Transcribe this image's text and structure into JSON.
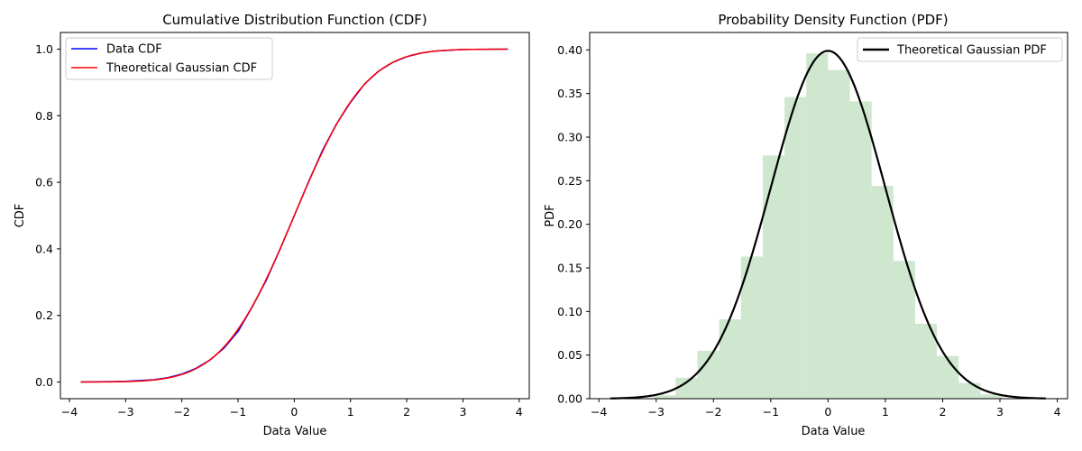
{
  "colors": {
    "data_cdf": "#0000ff",
    "theoretical_cdf": "#ff0000",
    "theoretical_pdf": "#000000",
    "histogram": "#cfe6cf"
  },
  "chart_data": [
    {
      "type": "line",
      "title": "Cumulative Distribution Function (CDF)",
      "xlabel": "Data Value",
      "ylabel": "CDF",
      "xlim": [
        -4.16,
        4.18
      ],
      "ylim": [
        -0.05,
        1.05
      ],
      "xticks": [
        -4,
        -3,
        -2,
        -1,
        0,
        1,
        2,
        3,
        4
      ],
      "yticks": [
        0.0,
        0.2,
        0.4,
        0.6,
        0.8,
        1.0
      ],
      "legend": "top-left",
      "grid": false,
      "series": [
        {
          "name": "Data CDF",
          "color": "#0000ff",
          "x": [
            -3.8,
            -3.0,
            -2.5,
            -2.25,
            -2.0,
            -1.75,
            -1.5,
            -1.25,
            -1.0,
            -0.75,
            -0.5,
            -0.25,
            0.0,
            0.25,
            0.5,
            0.75,
            1.0,
            1.25,
            1.5,
            1.75,
            2.0,
            2.25,
            2.5,
            3.0,
            3.8
          ],
          "y": [
            0.0,
            0.002,
            0.007,
            0.013,
            0.024,
            0.041,
            0.066,
            0.102,
            0.152,
            0.225,
            0.305,
            0.4,
            0.5,
            0.6,
            0.695,
            0.775,
            0.84,
            0.895,
            0.934,
            0.96,
            0.977,
            0.988,
            0.994,
            0.999,
            1.0
          ]
        },
        {
          "name": "Theoretical Gaussian CDF",
          "color": "#ff0000",
          "dist": "normal-cdf",
          "mean": 0,
          "std": 1,
          "x_range": [
            -3.8,
            3.8
          ]
        }
      ]
    },
    {
      "type": "bar",
      "title": "Probability Density Function (PDF)",
      "xlabel": "Data Value",
      "ylabel": "PDF",
      "xlim": [
        -4.16,
        4.18
      ],
      "ylim": [
        0,
        0.42
      ],
      "xticks": [
        -4,
        -3,
        -2,
        -1,
        0,
        1,
        2,
        3,
        4
      ],
      "yticks": [
        0.0,
        0.05,
        0.1,
        0.15,
        0.2,
        0.25,
        0.3,
        0.35,
        0.4
      ],
      "legend": "top-right",
      "grid": false,
      "histogram": {
        "color": "#cfe6cf",
        "bin_edges": [
          -3.04,
          -2.66,
          -2.28,
          -1.9,
          -1.52,
          -1.14,
          -0.76,
          -0.38,
          0.0,
          0.38,
          0.76,
          1.14,
          1.52,
          1.9,
          2.28,
          2.66,
          3.04
        ],
        "values": [
          0.004,
          0.024,
          0.055,
          0.091,
          0.163,
          0.279,
          0.346,
          0.396,
          0.377,
          0.341,
          0.244,
          0.158,
          0.086,
          0.049,
          0.018,
          0.005
        ]
      },
      "series": [
        {
          "name": "Theoretical Gaussian PDF",
          "color": "#000000",
          "dist": "normal-pdf",
          "mean": 0,
          "std": 1,
          "x_range": [
            -3.8,
            3.8
          ]
        }
      ]
    }
  ]
}
